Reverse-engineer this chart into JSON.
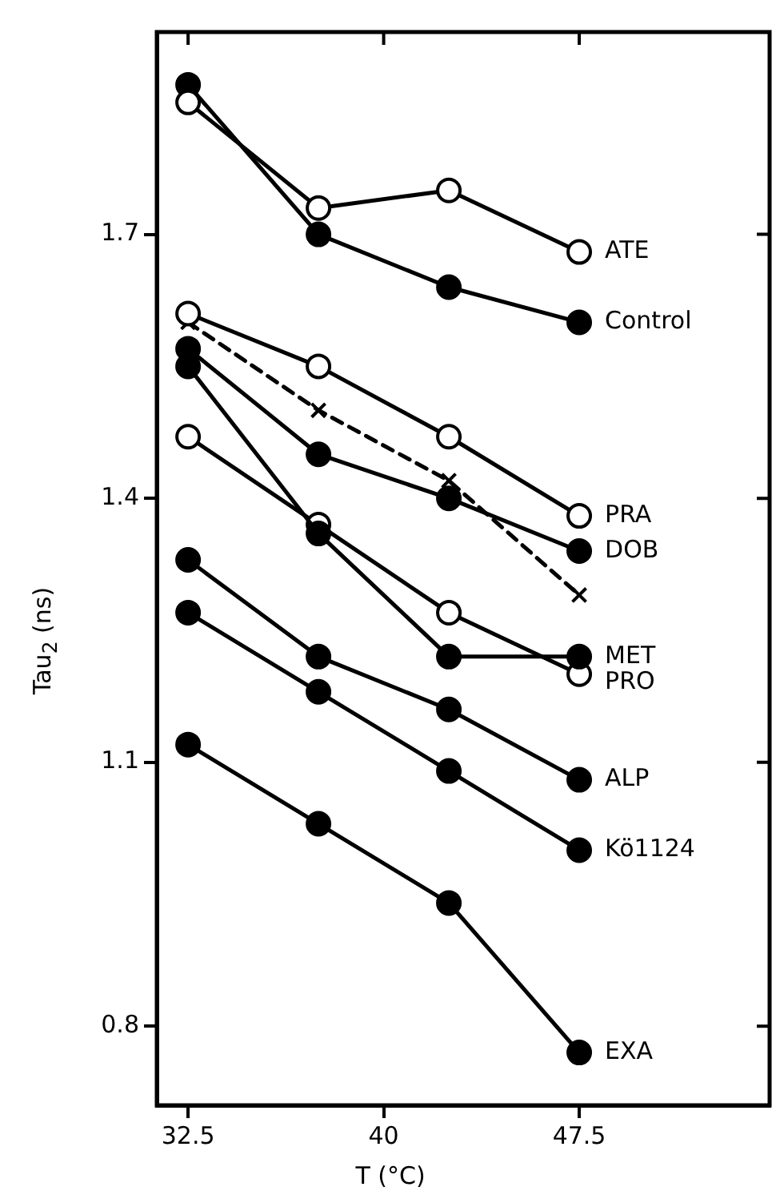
{
  "chart_data": {
    "type": "line",
    "xlabel": "T (°C)",
    "ylabel": "Tau$_{2}$ (ns)",
    "xlim": [
      31.3,
      54.8
    ],
    "xticks": [
      32.5,
      40,
      47.5
    ],
    "ylim": [
      0.71,
      1.93
    ],
    "yticks": [
      0.8,
      1.1,
      1.4,
      1.7
    ],
    "grid": false,
    "legend": false,
    "series": [
      {
        "name": "ATE",
        "color": "#000000",
        "marker": "circle_open",
        "line_style": "solid",
        "x": [
          32.5,
          37.5,
          42.5,
          47.5
        ],
        "values": [
          1.85,
          1.73,
          1.75,
          1.68
        ]
      },
      {
        "name": "Control",
        "color": "#000000",
        "marker": "circle",
        "line_style": "solid",
        "x": [
          32.5,
          37.5,
          42.5,
          47.5
        ],
        "values": [
          1.87,
          1.7,
          1.64,
          1.6
        ]
      },
      {
        "name": "PRA",
        "color": "#000000",
        "marker": "circle_open",
        "line_style": "solid",
        "x": [
          32.5,
          37.5,
          42.5,
          47.5
        ],
        "values": [
          1.61,
          1.55,
          1.47,
          1.38
        ]
      },
      {
        "color": "#000000",
        "marker": "cross",
        "line_style": "dashed",
        "x": [
          32.5,
          37.5,
          42.5,
          47.5
        ],
        "values": [
          1.6,
          1.5,
          1.42,
          1.29
        ]
      },
      {
        "name": "DOB",
        "color": "#000000",
        "marker": "circle",
        "line_style": "solid",
        "x": [
          32.5,
          37.5,
          42.5,
          47.5
        ],
        "values": [
          1.57,
          1.45,
          1.4,
          1.34
        ]
      },
      {
        "name": "MET",
        "color": "#000000",
        "marker": "circle",
        "line_style": "solid",
        "x": [
          32.5,
          37.5,
          42.5,
          47.5
        ],
        "values": [
          1.55,
          1.36,
          1.22,
          1.22
        ]
      },
      {
        "name": "PRO",
        "color": "#000000",
        "marker": "circle_open",
        "line_style": "solid",
        "x": [
          32.5,
          37.5,
          42.5,
          47.5
        ],
        "values": [
          1.47,
          1.37,
          1.27,
          1.2
        ]
      },
      {
        "name": "ALP",
        "color": "#000000",
        "marker": "circle",
        "line_style": "solid",
        "x": [
          32.5,
          37.5,
          42.5,
          47.5
        ],
        "values": [
          1.33,
          1.22,
          1.16,
          1.08
        ]
      },
      {
        "name": "Kö1124",
        "color": "#000000",
        "marker": "circle",
        "line_style": "solid",
        "x": [
          32.5,
          37.5,
          42.5,
          47.5
        ],
        "values": [
          1.27,
          1.18,
          1.09,
          1.0
        ]
      },
      {
        "name": "EXA",
        "color": "#000000",
        "marker": "circle",
        "line_style": "solid",
        "x": [
          32.5,
          37.5,
          42.5,
          47.5
        ],
        "values": [
          1.12,
          1.03,
          0.94,
          0.77
        ]
      }
    ]
  }
}
